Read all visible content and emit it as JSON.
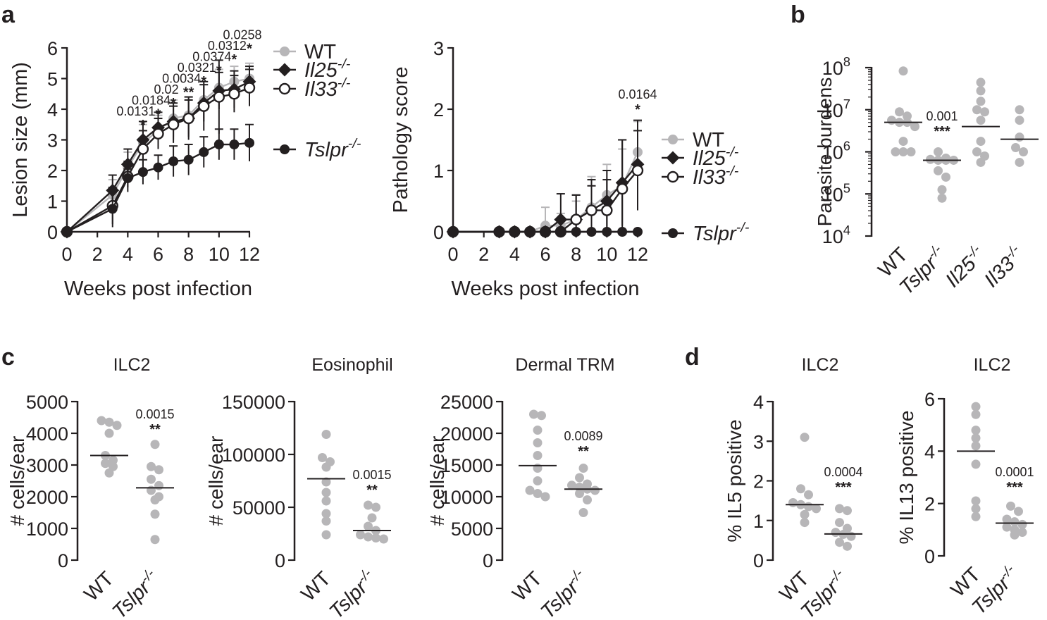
{
  "panels": {
    "a": "a",
    "b": "b",
    "c": "c",
    "d": "d"
  },
  "colors": {
    "wt": "#b7b6b8",
    "mutant": "#231f20",
    "axis": "#231f20"
  },
  "superscript": "-/-",
  "legend": [
    {
      "name": "WT",
      "italic": false,
      "marker": "circle-filled",
      "color": "#b7b6b8"
    },
    {
      "name": "Il25",
      "italic": true,
      "marker": "diamond-filled",
      "color": "#231f20"
    },
    {
      "name": "Il33",
      "italic": true,
      "marker": "circle-open",
      "color": "#231f20"
    },
    {
      "name": "Tslpr",
      "italic": true,
      "marker": "circle-filled",
      "color": "#231f20"
    }
  ],
  "chart_data": [
    {
      "id": "a-lesion",
      "type": "line",
      "title": "",
      "xlabel": "Weeks post infection",
      "ylabel": "Lesion size (mm)",
      "xlim": [
        0,
        12
      ],
      "ylim": [
        0,
        6
      ],
      "xticks": [
        "0",
        "2",
        "4",
        "6",
        "8",
        "10",
        "12"
      ],
      "yticks": [
        "0",
        "1",
        "2",
        "3",
        "4",
        "5",
        "6"
      ],
      "series": [
        {
          "name": "WT",
          "x": [
            0,
            3,
            4,
            5,
            6,
            7,
            8,
            9,
            10,
            11,
            12
          ],
          "y": [
            0,
            1.2,
            2.1,
            2.9,
            3.3,
            3.7,
            3.8,
            4.3,
            4.7,
            4.9,
            5.0
          ],
          "err": [
            0,
            0.5,
            0.5,
            0.6,
            0.5,
            0.6,
            0.6,
            0.6,
            0.6,
            0.5,
            0.5
          ]
        },
        {
          "name": "Il25",
          "x": [
            0,
            3,
            4,
            5,
            6,
            7,
            8,
            9,
            10,
            11,
            12
          ],
          "y": [
            0,
            1.35,
            2.2,
            3.0,
            3.4,
            3.6,
            3.7,
            4.2,
            4.6,
            4.65,
            4.9
          ],
          "err": [
            0,
            0.5,
            0.5,
            0.6,
            0.5,
            0.6,
            0.6,
            0.6,
            0.6,
            0.6,
            0.5
          ]
        },
        {
          "name": "Il33",
          "x": [
            0,
            3,
            4,
            5,
            6,
            7,
            8,
            9,
            10,
            11,
            12
          ],
          "y": [
            0,
            0.85,
            1.8,
            2.7,
            3.2,
            3.5,
            3.7,
            4.1,
            4.4,
            4.5,
            4.7
          ],
          "err": [
            0,
            0.6,
            0.5,
            0.6,
            0.5,
            0.6,
            0.7,
            0.8,
            1.2,
            0.6,
            0.6
          ]
        },
        {
          "name": "Tslpr",
          "x": [
            0,
            3,
            4,
            5,
            6,
            7,
            8,
            9,
            10,
            11,
            12
          ],
          "y": [
            0,
            0.75,
            1.75,
            1.95,
            2.1,
            2.3,
            2.35,
            2.6,
            2.85,
            2.85,
            2.9
          ],
          "err": [
            0,
            0.6,
            0.3,
            0.4,
            0.4,
            0.5,
            0.5,
            0.5,
            0.5,
            0.5,
            0.6
          ]
        }
      ],
      "annotations": [
        {
          "x": 5,
          "p": "0.0131",
          "stars": "*"
        },
        {
          "x": 6,
          "p": "0.0184",
          "stars": "*"
        },
        {
          "x": 7,
          "p": "0.02",
          "stars": "*"
        },
        {
          "x": 8,
          "p": "0.0034",
          "stars": "**"
        },
        {
          "x": 9,
          "p": "0.0321",
          "stars": "*"
        },
        {
          "x": 10,
          "p": "0.0374",
          "stars": "*"
        },
        {
          "x": 11,
          "p": "0.0312",
          "stars": "*"
        },
        {
          "x": 12,
          "p": "0.0258",
          "stars": "*"
        }
      ]
    },
    {
      "id": "a-pathology",
      "type": "line",
      "title": "",
      "xlabel": "Weeks post infection",
      "ylabel": "Pathology score",
      "xlim": [
        0,
        12
      ],
      "ylim": [
        0,
        3
      ],
      "xticks": [
        "0",
        "2",
        "4",
        "6",
        "8",
        "10",
        "12"
      ],
      "yticks": [
        "0",
        "1",
        "2",
        "3"
      ],
      "series": [
        {
          "name": "WT",
          "x": [
            0,
            3,
            4,
            5,
            6,
            7,
            8,
            9,
            10,
            11,
            12
          ],
          "y": [
            0,
            0,
            0,
            0,
            0.1,
            0.1,
            0.2,
            0.4,
            0.6,
            0.75,
            1.3
          ],
          "err": [
            0,
            0,
            0,
            0,
            0.3,
            0.2,
            0.3,
            0.5,
            0.5,
            0.6,
            0.5
          ]
        },
        {
          "name": "Il25",
          "x": [
            0,
            3,
            4,
            5,
            6,
            7,
            8,
            9,
            10,
            11,
            12
          ],
          "y": [
            0,
            0,
            0,
            0,
            0,
            0.2,
            0.2,
            0.35,
            0.5,
            0.8,
            1.1
          ],
          "err": [
            0,
            0,
            0,
            0,
            0,
            0.42,
            0.4,
            0.5,
            0.5,
            0.7,
            0.72
          ]
        },
        {
          "name": "Il33",
          "x": [
            0,
            3,
            4,
            5,
            6,
            7,
            8,
            9,
            10,
            11,
            12
          ],
          "y": [
            0,
            0,
            0,
            0,
            0,
            0,
            0.2,
            0.35,
            0.35,
            0.7,
            1.0
          ],
          "err": [
            0,
            0,
            0,
            0,
            0,
            0,
            0.4,
            0.4,
            0.5,
            0.8,
            0.65
          ]
        },
        {
          "name": "Tslpr",
          "x": [
            0,
            3,
            4,
            5,
            6,
            7,
            8,
            9,
            10,
            11,
            12
          ],
          "y": [
            0,
            0,
            0,
            0,
            0,
            0,
            0,
            0,
            0,
            0,
            0
          ],
          "err": [
            0,
            0,
            0,
            0,
            0,
            0,
            0,
            0,
            0,
            0,
            0
          ]
        }
      ],
      "annotations": [
        {
          "x": 12,
          "p": "0.0164",
          "stars": "*"
        }
      ]
    },
    {
      "id": "b-parasite",
      "type": "scatter",
      "title": "",
      "ylabel": "Parasite burdens",
      "yscale": "log",
      "ylim_exp": [
        4,
        8
      ],
      "yticks": [
        "10",
        "10",
        "10",
        "10",
        "10"
      ],
      "ytick_exponents": [
        "4",
        "5",
        "6",
        "7",
        "8"
      ],
      "groups": [
        {
          "label": "WT",
          "italic": false,
          "color": "#b7b6b8",
          "log10_values": [
            7.92,
            6.95,
            6.85,
            6.75,
            6.7,
            6.7,
            6.6,
            6.25,
            6.0,
            6.0,
            6.0
          ],
          "mean_log10": 6.7
        },
        {
          "label": "Tslpr",
          "italic": true,
          "color": "#b7b6b8",
          "log10_values": [
            6.0,
            5.85,
            5.82,
            5.8,
            5.8,
            5.8,
            5.55,
            5.4,
            5.1,
            4.9
          ],
          "mean_log10": 5.8
        },
        {
          "label": "Il25",
          "italic": true,
          "color": "#b7b6b8",
          "log10_values": [
            7.65,
            7.45,
            7.2,
            7.0,
            6.95,
            6.75,
            6.25,
            6.0,
            5.9,
            5.75
          ],
          "mean_log10": 6.6
        },
        {
          "label": "Il33",
          "italic": true,
          "color": "#b7b6b8",
          "log10_values": [
            7.0,
            6.75,
            6.35,
            6.1,
            6.0,
            5.75
          ],
          "mean_log10": 6.3
        }
      ],
      "annotations": [
        {
          "group": "Tslpr",
          "p": "0.001",
          "stars": "***"
        }
      ]
    },
    {
      "id": "c-ilc2",
      "type": "scatter",
      "title": "ILC2",
      "ylabel": "# cells/ear",
      "ylim": [
        0,
        5000
      ],
      "yticks": [
        "0",
        "1000",
        "2000",
        "3000",
        "4000",
        "5000"
      ],
      "groups": [
        {
          "label": "WT",
          "italic": false,
          "values": [
            4400,
            4350,
            4250,
            4000,
            3300,
            3150,
            3050,
            2950,
            2750
          ],
          "mean": 3300
        },
        {
          "label": "Tslpr",
          "italic": true,
          "values": [
            3650,
            2950,
            2850,
            2550,
            2350,
            2200,
            2000,
            1900,
            1450,
            650
          ],
          "mean": 2280
        }
      ],
      "annotations": [
        {
          "group": "Tslpr",
          "p": "0.0015",
          "stars": "**"
        }
      ]
    },
    {
      "id": "c-eosinophil",
      "type": "scatter",
      "title": "Eosinophil",
      "ylabel": "# cells/ear",
      "ylim": [
        0,
        150000
      ],
      "yticks": [
        "0",
        "50000",
        "100000",
        "150000"
      ],
      "groups": [
        {
          "label": "WT",
          "italic": false,
          "values": [
            119000,
            97000,
            93000,
            88000,
            74000,
            64000,
            56000,
            44000,
            37000,
            24000
          ],
          "mean": 77000
        },
        {
          "label": "Tslpr",
          "italic": true,
          "values": [
            52000,
            50000,
            40000,
            32000,
            28000,
            24000,
            22000,
            21000,
            20000
          ],
          "mean": 28000
        }
      ],
      "annotations": [
        {
          "group": "Tslpr",
          "p": "0.0015",
          "stars": "**"
        }
      ]
    },
    {
      "id": "c-trm",
      "type": "scatter",
      "title": "Dermal TRM",
      "ylabel": "# cells/ear",
      "ylim": [
        0,
        25000
      ],
      "yticks": [
        "0",
        "5000",
        "10000",
        "15000",
        "20000",
        "25000"
      ],
      "groups": [
        {
          "label": "WT",
          "italic": false,
          "values": [
            23000,
            22800,
            20500,
            18500,
            16500,
            14500,
            12500,
            11000,
            10500,
            10000
          ],
          "mean": 14900
        },
        {
          "label": "Tslpr",
          "italic": true,
          "values": [
            14500,
            13000,
            12000,
            11800,
            11500,
            11200,
            11000,
            10500,
            9500,
            7500
          ],
          "mean": 11200
        }
      ],
      "annotations": [
        {
          "group": "Tslpr",
          "p": "0.0089",
          "stars": "**"
        }
      ]
    },
    {
      "id": "d-il5",
      "type": "scatter",
      "title": "ILC2",
      "ylabel": "% IL5 positive",
      "ylim": [
        0,
        4
      ],
      "yticks": [
        "0",
        "1",
        "2",
        "3",
        "4"
      ],
      "groups": [
        {
          "label": "WT",
          "italic": false,
          "values": [
            3.1,
            1.8,
            1.65,
            1.45,
            1.4,
            1.35,
            1.3,
            1.15,
            0.95
          ],
          "mean": 1.4
        },
        {
          "label": "Tslpr",
          "italic": true,
          "values": [
            1.3,
            1.25,
            0.95,
            0.8,
            0.7,
            0.65,
            0.6,
            0.45,
            0.35
          ],
          "mean": 0.66
        }
      ],
      "annotations": [
        {
          "group": "Tslpr",
          "p": "0.0004",
          "stars": "***"
        }
      ]
    },
    {
      "id": "d-il13",
      "type": "scatter",
      "title": "ILC2",
      "ylabel": "% IL13 positive",
      "ylim": [
        0,
        6
      ],
      "yticks": [
        "0",
        "2",
        "4",
        "6"
      ],
      "groups": [
        {
          "label": "WT",
          "italic": false,
          "values": [
            5.7,
            5.4,
            4.8,
            4.5,
            4.2,
            3.5,
            2.1,
            1.8,
            1.5
          ],
          "mean": 4.0
        },
        {
          "label": "Tslpr",
          "italic": true,
          "values": [
            1.9,
            1.7,
            1.4,
            1.3,
            1.2,
            1.1,
            1.0,
            0.9,
            0.8
          ],
          "mean": 1.25
        }
      ],
      "annotations": [
        {
          "group": "Tslpr",
          "p": "0.0001",
          "stars": "***"
        }
      ]
    }
  ]
}
